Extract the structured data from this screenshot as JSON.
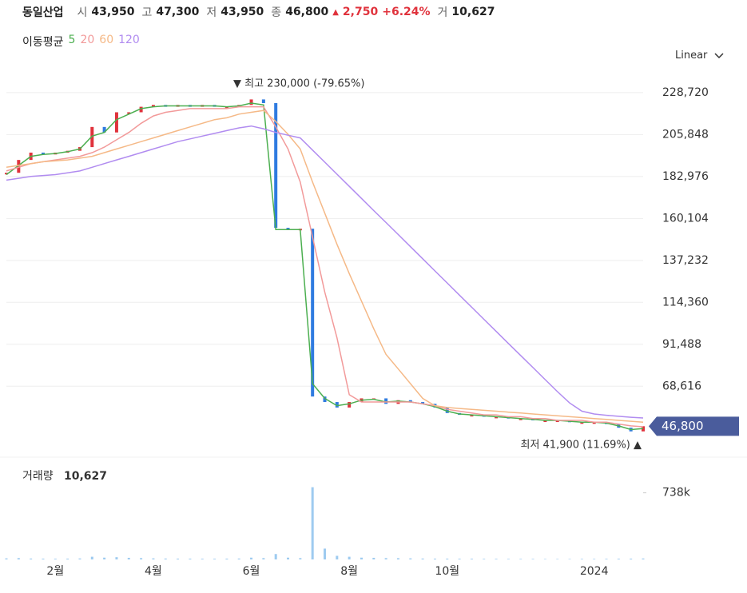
{
  "header": {
    "name": "동일산업",
    "items": [
      {
        "label": "시",
        "value": "43,950"
      },
      {
        "label": "고",
        "value": "47,300"
      },
      {
        "label": "저",
        "value": "43,950"
      },
      {
        "label": "종",
        "value": "46,800"
      }
    ],
    "change_arrow": "▲",
    "change": "2,750",
    "change_pct": "+6.24%",
    "volume_label": "거",
    "volume": "10,627"
  },
  "scale_mode": "Linear",
  "chart_data": [
    {
      "type": "price",
      "legend_title": "이동평균",
      "categories": [
        null,
        null,
        null,
        null,
        "2월",
        null,
        null,
        null,
        null,
        null,
        null,
        null,
        "4월",
        null,
        null,
        null,
        null,
        null,
        null,
        null,
        "6월",
        null,
        null,
        null,
        null,
        null,
        null,
        null,
        "8월",
        null,
        null,
        null,
        null,
        null,
        null,
        null,
        "10월",
        null,
        null,
        null,
        null,
        null,
        null,
        null,
        null,
        null,
        null,
        null,
        "2024",
        null,
        null,
        null,
        null
      ],
      "ylim": [
        33000,
        240000
      ],
      "yticks": [
        {
          "value": 68616,
          "label": "68,616"
        },
        {
          "value": 91488,
          "label": "91,488"
        },
        {
          "value": 114360,
          "label": "114,360"
        },
        {
          "value": 137232,
          "label": "137,232"
        },
        {
          "value": 160104,
          "label": "160,104"
        },
        {
          "value": 182976,
          "label": "182,976"
        },
        {
          "value": 205848,
          "label": "205,848"
        },
        {
          "value": 228720,
          "label": "228,720"
        }
      ],
      "grid": true,
      "up_color": "#e0323c",
      "down_color": "#2f7be0",
      "series": [
        {
          "color": "#2f7be0",
          "values": [
            185000,
            192000,
            196000,
            195000,
            196000,
            197000,
            199000,
            210000,
            207000,
            218000,
            218000,
            221000,
            222000,
            221000,
            222000,
            221000,
            222000,
            221000,
            221000,
            222000,
            225000,
            223000,
            155000,
            154500,
            154500,
            63000,
            60000,
            57000,
            60000,
            62000,
            62000,
            59000,
            61000,
            60000,
            59000,
            57000,
            54000,
            53000,
            53000,
            52000,
            52000,
            51000,
            51000,
            50000,
            50000,
            50000,
            49000,
            49000,
            49000,
            48000,
            46000,
            44000,
            46800
          ]
        },
        {
          "name": "5",
          "color": "#4caf50",
          "values": [
            184000,
            189000,
            194000,
            195000,
            195500,
            196500,
            198000,
            205000,
            207000,
            214000,
            217000,
            220000,
            221000,
            221500,
            221500,
            221500,
            221500,
            221500,
            221000,
            221500,
            223000,
            222000,
            154000,
            154000,
            154000,
            70000,
            62000,
            58000,
            59000,
            61000,
            61500,
            60000,
            60500,
            60000,
            59000,
            57500,
            55000,
            53500,
            53000,
            52500,
            52000,
            51500,
            51000,
            50500,
            50000,
            50000,
            49500,
            49000,
            49000,
            48500,
            47000,
            45000,
            45500
          ]
        },
        {
          "name": "20",
          "color": "#f29a9a",
          "values": [
            186000,
            188000,
            190000,
            191000,
            192000,
            193000,
            194000,
            196000,
            199000,
            203000,
            207000,
            212000,
            216000,
            218000,
            219000,
            220000,
            220000,
            220000,
            220000,
            221000,
            221000,
            221000,
            210000,
            198000,
            180000,
            150000,
            120000,
            95000,
            64000,
            60000,
            60000,
            60000,
            60000,
            60000,
            59000,
            58000,
            56000,
            55000,
            54000,
            53000,
            53000,
            52000,
            52000,
            51000,
            51000,
            50000,
            50000,
            50000,
            49000,
            49000,
            48000,
            47000,
            46500
          ]
        },
        {
          "name": "60",
          "color": "#f5b987",
          "values": [
            188000,
            189000,
            190000,
            191000,
            191500,
            192000,
            193000,
            194000,
            196000,
            198000,
            200000,
            202000,
            204000,
            206000,
            208000,
            210000,
            212000,
            214000,
            215000,
            217000,
            218000,
            219000,
            213000,
            206000,
            198000,
            180000,
            163000,
            146000,
            130000,
            115000,
            100000,
            86000,
            78000,
            70000,
            62000,
            58000,
            57000,
            56500,
            56000,
            55500,
            55000,
            54500,
            54000,
            53500,
            53000,
            52500,
            52000,
            51500,
            51000,
            50500,
            50000,
            49500,
            49000
          ]
        },
        {
          "name": "120",
          "color": "#b18cf0",
          "values": [
            181000,
            182000,
            183000,
            183500,
            184000,
            185000,
            186000,
            188000,
            190000,
            192000,
            194000,
            196000,
            198000,
            200000,
            202000,
            203500,
            205000,
            206500,
            208000,
            209500,
            210500,
            209000,
            207000,
            205500,
            204000,
            197400,
            190800,
            184200,
            177600,
            171000,
            164400,
            157900,
            151300,
            144700,
            138100,
            131500,
            124900,
            118300,
            111700,
            105100,
            98500,
            91900,
            85400,
            78800,
            72200,
            65700,
            59500,
            55000,
            53500,
            52800,
            52200,
            51700,
            51300
          ]
        }
      ],
      "annotations": [
        "▼ 최고 230,000 (-79.65%)",
        "최저 41,900 (11.69%) ▲"
      ],
      "last_value": {
        "value": 46800,
        "label": "46,800"
      }
    },
    {
      "type": "volume",
      "title": "거래량",
      "latest": "10,627",
      "color": "#9ecbf0",
      "ylim": [
        0,
        1080000
      ],
      "yticks": [
        {
          "value": 738000,
          "label": "738k"
        }
      ],
      "values": [
        12000,
        15000,
        10000,
        9000,
        8000,
        9000,
        11000,
        30000,
        20000,
        25000,
        18000,
        15000,
        12000,
        10000,
        9000,
        9000,
        8000,
        8000,
        9000,
        10000,
        20000,
        15000,
        60000,
        20000,
        15000,
        800000,
        120000,
        40000,
        30000,
        20000,
        18000,
        15000,
        14000,
        12000,
        10000,
        9000,
        9000,
        8000,
        8000,
        7000,
        7000,
        6000,
        6000,
        6000,
        5000,
        5000,
        5000,
        6000,
        6000,
        7000,
        8000,
        9000,
        10627
      ]
    }
  ]
}
